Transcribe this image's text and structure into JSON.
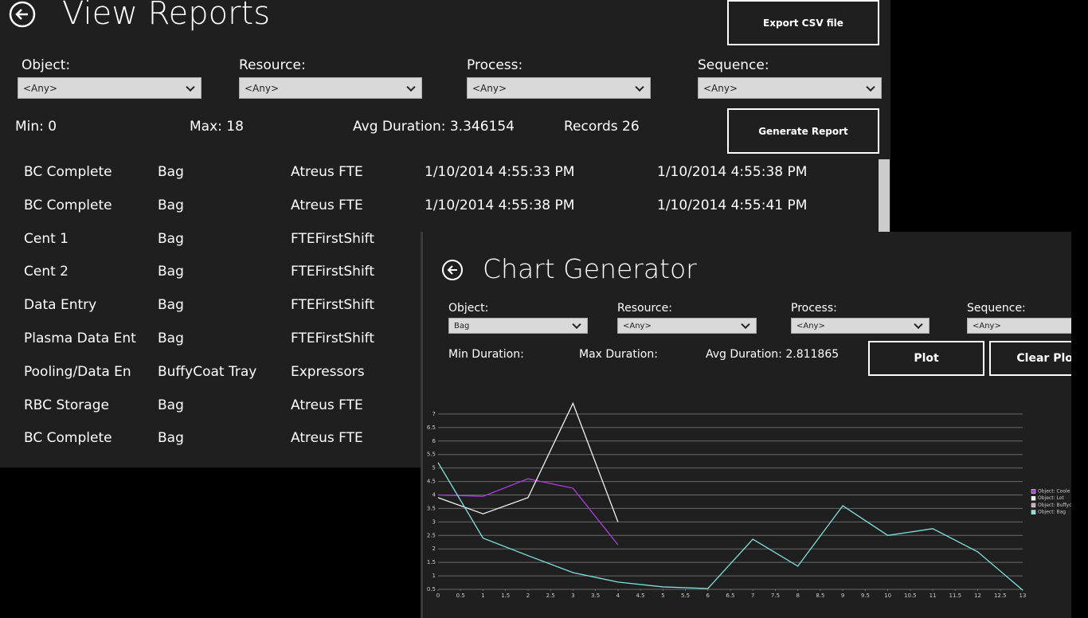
{
  "view_reports": {
    "title": "View Reports",
    "export_button": "Export CSV file",
    "filters": [
      {
        "label": "Object:",
        "value": "<Any>"
      },
      {
        "label": "Resource:",
        "value": "<Any>"
      },
      {
        "label": "Process:",
        "value": "<Any>"
      },
      {
        "label": "Sequence:",
        "value": "<Any>"
      }
    ],
    "stats": [
      "Min: 0",
      "Max: 18",
      "Avg Duration: 3.346154",
      "Records 26"
    ],
    "generate_button": "Generate Report",
    "rows": [
      [
        "BC Complete",
        "Bag",
        "Atreus FTE",
        "1/10/2014 4:55:33 PM",
        "1/10/2014 4:55:38 PM"
      ],
      [
        "BC Complete",
        "Bag",
        "Atreus FTE",
        "1/10/2014 4:55:38 PM",
        "1/10/2014 4:55:41 PM"
      ],
      [
        "Cent 1",
        "Bag",
        "FTEFirstShift"
      ],
      [
        "Cent 2",
        "Bag",
        "FTEFirstShift"
      ],
      [
        "Data Entry",
        "Bag",
        "FTEFirstShift"
      ],
      [
        "Plasma Data Ent",
        "Bag",
        "FTEFirstShift"
      ],
      [
        "Pooling/Data En",
        "BuffyCoat Tray",
        "Expressors"
      ],
      [
        "RBC Storage",
        "Bag",
        "Atreus FTE"
      ],
      [
        "BC Complete",
        "Bag",
        "Atreus FTE"
      ]
    ]
  },
  "chart_generator": {
    "title": "Chart Generator",
    "filters": [
      {
        "label": "Object:",
        "value": "Bag"
      },
      {
        "label": "Resource:",
        "value": "<Any>"
      },
      {
        "label": "Process:",
        "value": "<Any>"
      },
      {
        "label": "Sequence:",
        "value": "<Any>"
      }
    ],
    "stats": [
      "Min Duration:",
      "Max Duration:",
      "Avg Duration: 2.811865"
    ],
    "plot_button": "Plot",
    "clear_button": "Clear Plot"
  },
  "chart_data": {
    "type": "line",
    "x": [
      0,
      1,
      2,
      3,
      4,
      5,
      6,
      7,
      8,
      9,
      10,
      11,
      12,
      13
    ],
    "series": [
      {
        "name": "Object: Coole",
        "color": "#b13ce0",
        "values": [
          4.0,
          3.95,
          4.6,
          4.25,
          2.15,
          null,
          null,
          null,
          null,
          null,
          null,
          null,
          null,
          null
        ]
      },
      {
        "name": "Object: Lot",
        "color": "#f2f2f2",
        "values": [
          3.9,
          3.3,
          3.9,
          7.4,
          3.0,
          null,
          null,
          null,
          null,
          null,
          null,
          null,
          null,
          null
        ]
      },
      {
        "name": "Object: Buffyc",
        "color": "#c9a6b8",
        "values": [
          null,
          null,
          null,
          null,
          null,
          null,
          null,
          null,
          null,
          null,
          null,
          null,
          null,
          null
        ]
      },
      {
        "name": "Object: Bag",
        "color": "#7fe0e0",
        "values": [
          5.2,
          2.4,
          1.75,
          1.12,
          0.77,
          0.59,
          0.53,
          2.36,
          1.36,
          3.6,
          2.5,
          2.75,
          1.89,
          0.47
        ]
      }
    ],
    "xlim": [
      0,
      13
    ],
    "xticks": [
      0,
      0.5,
      1,
      1.5,
      2,
      2.5,
      3,
      3.5,
      4,
      4.5,
      5,
      5.5,
      6,
      6.5,
      7,
      7.5,
      8,
      8.5,
      9,
      9.5,
      10,
      10.5,
      11,
      11.5,
      12,
      12.5,
      13
    ],
    "ylim": [
      0.5,
      7.5
    ],
    "yticks": [
      0.5,
      1,
      1.5,
      2,
      2.5,
      3,
      3.5,
      4,
      4.5,
      5,
      5.5,
      6,
      6.5,
      7
    ],
    "grid": true
  }
}
